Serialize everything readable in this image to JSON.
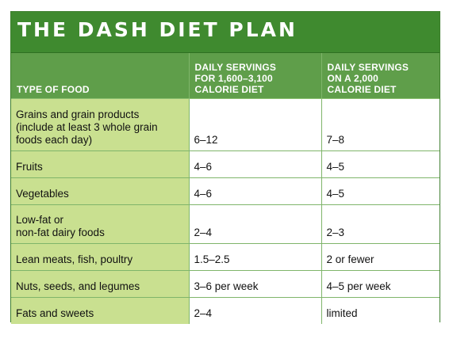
{
  "title": "THE DASH DIET PLAN",
  "headers": {
    "food": "TYPE OF FOOD",
    "col2": [
      "DAILY SERVINGS",
      "FOR 1,600–3,100",
      "CALORIE DIET"
    ],
    "col3": [
      "DAILY SERVINGS",
      "ON A 2,000",
      "CALORIE DIET"
    ]
  },
  "rows": [
    {
      "food": [
        "Grains and grain products",
        "(include at least 3 whole grain",
        "foods each day)"
      ],
      "servings_range": "6–12",
      "servings_2000": "7–8"
    },
    {
      "food": [
        "Fruits"
      ],
      "servings_range": "4–6",
      "servings_2000": "4–5"
    },
    {
      "food": [
        "Vegetables"
      ],
      "servings_range": "4–6",
      "servings_2000": "4–5"
    },
    {
      "food": [
        "Low-fat or",
        "non-fat dairy foods"
      ],
      "servings_range": "2–4",
      "servings_2000": "2–3"
    },
    {
      "food": [
        "Lean meats, fish, poultry"
      ],
      "servings_range": "1.5–2.5",
      "servings_2000": "2 or fewer"
    },
    {
      "food": [
        "Nuts, seeds, and legumes"
      ],
      "servings_range": "3–6 per week",
      "servings_2000": "4–5 per week"
    },
    {
      "food": [
        "Fats and sweets"
      ],
      "servings_range": "2–4",
      "servings_2000": "limited"
    }
  ]
}
